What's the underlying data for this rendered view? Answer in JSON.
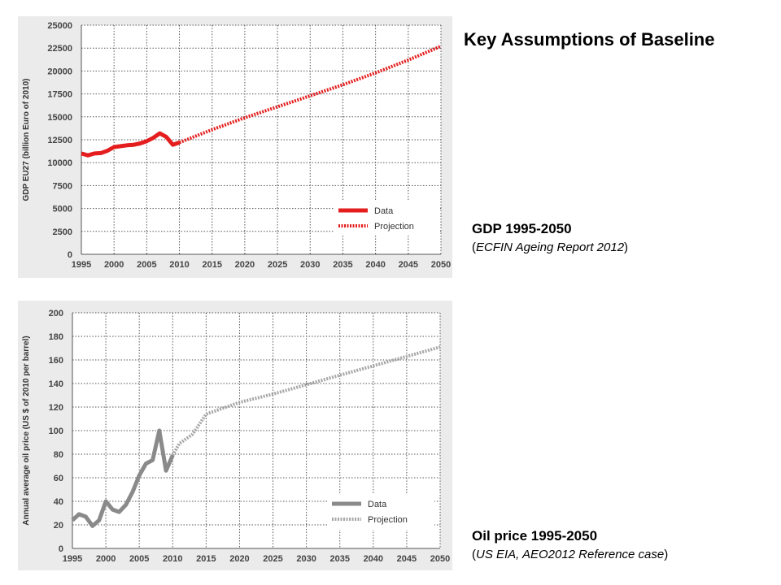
{
  "slide": {
    "title": "Key Assumptions of Baseline"
  },
  "captions": {
    "gdp": {
      "title": "GDP 1995-2050",
      "source": "ECFIN Ageing Report 2012"
    },
    "oil": {
      "title": "Oil price 1995-2050",
      "source": "US EIA, AEO2012 Reference case"
    }
  },
  "chart_data": [
    {
      "id": "gdp",
      "type": "line",
      "title": "",
      "xlabel": "",
      "ylabel": "GDP EU27 (billion Euro of 2010)",
      "xlim": [
        1995,
        2050
      ],
      "ylim": [
        0,
        25000
      ],
      "x_ticks": [
        1995,
        2000,
        2005,
        2010,
        2015,
        2020,
        2025,
        2030,
        2035,
        2040,
        2045,
        2050
      ],
      "y_ticks": [
        0,
        2500,
        5000,
        7500,
        10000,
        12500,
        15000,
        17500,
        20000,
        22500,
        25000
      ],
      "grid": true,
      "legend_position": "bottom-right",
      "series": [
        {
          "name": "Data",
          "style": "solid",
          "color": "#e41e1e",
          "x": [
            1995,
            1996,
            1997,
            1998,
            1999,
            2000,
            2001,
            2002,
            2003,
            2004,
            2005,
            2006,
            2007,
            2008,
            2009,
            2010
          ],
          "y": [
            11000,
            10800,
            11000,
            11050,
            11300,
            11700,
            11800,
            11900,
            11950,
            12100,
            12350,
            12700,
            13200,
            12800,
            11950,
            12200
          ]
        },
        {
          "name": "Projection",
          "style": "dotted",
          "color": "#e41e1e",
          "x": [
            2010,
            2015,
            2020,
            2025,
            2030,
            2035,
            2040,
            2045,
            2050
          ],
          "y": [
            12200,
            13600,
            14900,
            16100,
            17300,
            18500,
            19800,
            21200,
            22700
          ]
        }
      ]
    },
    {
      "id": "oil",
      "type": "line",
      "title": "",
      "xlabel": "",
      "ylabel": "Annual average oil price (US $ of 2010 per barrel)",
      "xlim": [
        1995,
        2050
      ],
      "ylim": [
        0,
        200
      ],
      "x_ticks": [
        1995,
        2000,
        2005,
        2010,
        2015,
        2020,
        2025,
        2030,
        2035,
        2040,
        2045,
        2050
      ],
      "y_ticks": [
        0,
        20,
        40,
        60,
        80,
        100,
        120,
        140,
        160,
        180,
        200
      ],
      "grid": true,
      "legend_position": "bottom-right",
      "series": [
        {
          "name": "Data",
          "style": "solid",
          "color": "#8a8a8a",
          "x": [
            1995,
            1996,
            1997,
            1998,
            1999,
            2000,
            2001,
            2002,
            2003,
            2004,
            2005,
            2006,
            2007,
            2008,
            2009,
            2010
          ],
          "y": [
            24,
            29,
            27,
            19,
            24,
            40,
            33,
            31,
            37,
            48,
            62,
            72,
            75,
            100,
            66,
            79
          ]
        },
        {
          "name": "Projection",
          "style": "dotted",
          "color": "#a6a6a6",
          "x": [
            2010,
            2011,
            2013,
            2015,
            2017,
            2020,
            2025,
            2030,
            2035,
            2040,
            2045,
            2050
          ],
          "y": [
            79,
            89,
            97,
            114,
            118,
            124,
            131,
            139,
            147,
            155,
            163,
            171
          ]
        }
      ]
    }
  ]
}
